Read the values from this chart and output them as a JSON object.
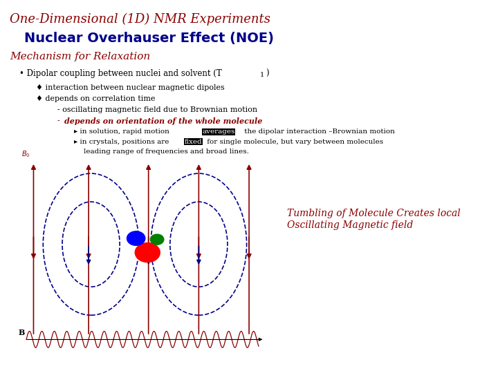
{
  "title": "One-Dimensional (1D) NMR Experiments",
  "subtitle": "Nuclear Overhauser Effect (NOE)",
  "section": "Mechanism for Relaxation",
  "caption": "Tumbling of Molecule Creates local\nOscillating Magnetic field",
  "bg_color": "#ffffff",
  "title_color": "#8B0000",
  "subtitle_color": "#00008B",
  "section_color": "#8B0000",
  "body_color": "#000000",
  "diagram_red": "#8B0000",
  "diagram_blue": "#00008B"
}
